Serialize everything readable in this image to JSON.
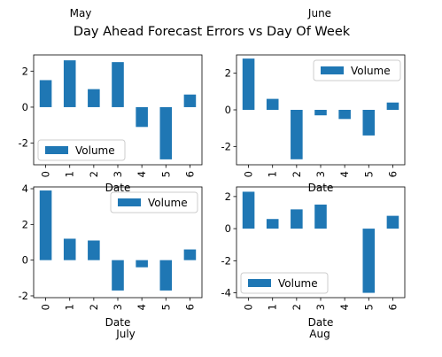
{
  "figure": {
    "title": "Day Ahead Forecast Errors vs Day Of Week",
    "top_labels": [
      "May",
      "June"
    ],
    "bottom_labels": [
      "July",
      "Aug"
    ]
  },
  "chart_data": [
    {
      "type": "bar",
      "month": "May",
      "categories": [
        "0",
        "1",
        "2",
        "3",
        "4",
        "5",
        "6"
      ],
      "series": [
        {
          "name": "Volume",
          "values": [
            1.5,
            2.6,
            1.0,
            2.5,
            -1.1,
            -2.9,
            0.7
          ]
        }
      ],
      "xlabel": "Date",
      "ylim": [
        -3.2,
        2.9
      ],
      "yticks": [
        -2,
        0,
        2
      ],
      "legend": "lower-left",
      "color": "#1f77b4"
    },
    {
      "type": "bar",
      "month": "June",
      "categories": [
        "0",
        "1",
        "2",
        "3",
        "4",
        "5",
        "6"
      ],
      "series": [
        {
          "name": "Volume",
          "values": [
            2.8,
            0.6,
            -2.7,
            -0.3,
            -0.5,
            -1.4,
            0.4
          ]
        }
      ],
      "xlabel": "Date",
      "ylim": [
        -3.0,
        3.0
      ],
      "yticks": [
        -2,
        0,
        2
      ],
      "legend": "upper-right",
      "color": "#1f77b4"
    },
    {
      "type": "bar",
      "month": "July",
      "categories": [
        "0",
        "1",
        "2",
        "3",
        "4",
        "5",
        "6"
      ],
      "series": [
        {
          "name": "Volume",
          "values": [
            3.9,
            1.2,
            1.1,
            -1.7,
            -0.4,
            -1.7,
            0.6
          ]
        }
      ],
      "xlabel": "Date",
      "ylim": [
        -2.1,
        4.1
      ],
      "yticks": [
        -2,
        0,
        2,
        4
      ],
      "legend": "upper-right",
      "color": "#1f77b4"
    },
    {
      "type": "bar",
      "month": "Aug",
      "categories": [
        "0",
        "1",
        "2",
        "3",
        "4",
        "5",
        "6"
      ],
      "series": [
        {
          "name": "Volume",
          "values": [
            2.3,
            0.6,
            1.2,
            1.5,
            0.0,
            -4.0,
            0.8
          ]
        }
      ],
      "xlabel": "Date",
      "ylim": [
        -4.3,
        2.6
      ],
      "yticks": [
        -4,
        -2,
        0,
        2
      ],
      "legend": "lower-left",
      "color": "#1f77b4"
    }
  ]
}
